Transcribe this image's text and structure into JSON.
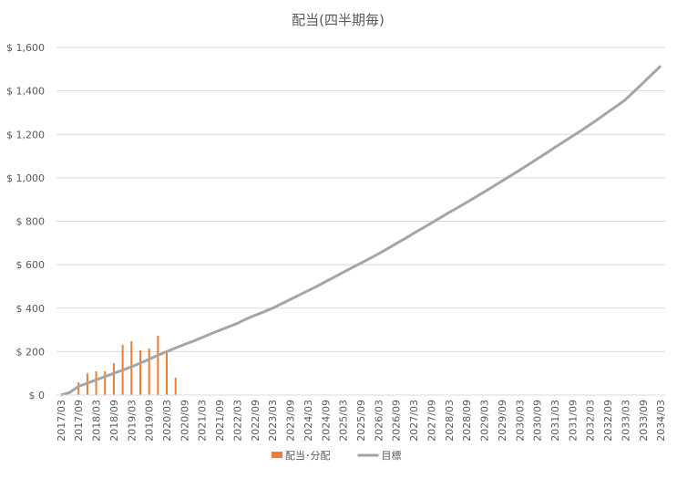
{
  "chart_data": {
    "type": "combo",
    "title": "配当(四半期毎)",
    "categories": [
      "2017/03",
      null,
      "2017/09",
      null,
      "2018/03",
      null,
      "2018/09",
      null,
      "2019/03",
      null,
      "2019/09",
      null,
      "2020/03",
      null,
      "2020/09",
      null,
      "2021/03",
      null,
      "2021/09",
      null,
      "2022/03",
      null,
      "2022/09",
      null,
      "2023/03",
      null,
      "2023/09",
      null,
      "2024/03",
      null,
      "2024/09",
      null,
      "2025/03",
      null,
      "2025/09",
      null,
      "2026/03",
      null,
      "2026/09",
      null,
      "2027/03",
      null,
      "2027/09",
      null,
      "2028/03",
      null,
      "2028/09",
      null,
      "2029/03",
      null,
      "2029/09",
      null,
      "2030/03",
      null,
      "2030/09",
      null,
      "2031/03",
      null,
      "2031/09",
      null,
      "2032/03",
      null,
      "2032/09",
      null,
      "2033/03",
      null,
      "2033/09",
      null,
      "2034/03"
    ],
    "series": [
      {
        "name": "配当･分配",
        "type": "bar",
        "color": "#ed7d31",
        "values": [
          null,
          null,
          59,
          100,
          109,
          109,
          147,
          231,
          248,
          206,
          214,
          273,
          206,
          80,
          null,
          null,
          null,
          null,
          null,
          null,
          null,
          null,
          null,
          null,
          null,
          null,
          null,
          null,
          null,
          null,
          null,
          null,
          null,
          null,
          null,
          null,
          null,
          null,
          null,
          null,
          null,
          null,
          null,
          null,
          null,
          null,
          null,
          null,
          null,
          null,
          null,
          null,
          null,
          null,
          null,
          null,
          null,
          null,
          null,
          null,
          null,
          null,
          null,
          null,
          null,
          null,
          null,
          null,
          null
        ]
      },
      {
        "name": "目標",
        "type": "line",
        "color": "#a5a5a5",
        "values": [
          0,
          12,
          40,
          55,
          70,
          85,
          100,
          115,
          130,
          147,
          165,
          183,
          200,
          217,
          233,
          248,
          265,
          282,
          298,
          314,
          330,
          350,
          367,
          383,
          400,
          420,
          440,
          460,
          480,
          500,
          522,
          543,
          565,
          586,
          607,
          628,
          650,
          673,
          697,
          720,
          745,
          768,
          792,
          816,
          840,
          863,
          887,
          911,
          935,
          960,
          985,
          1010,
          1035,
          1061,
          1087,
          1113,
          1140,
          1166,
          1192,
          1218,
          1245,
          1273,
          1302,
          1330,
          1360,
          1398,
          1437,
          1476,
          1515
        ]
      }
    ],
    "ylim": [
      0,
      1600
    ],
    "yticks": [
      {
        "value": 0,
        "label": "$ 0"
      },
      {
        "value": 200,
        "label": "$ 200"
      },
      {
        "value": 400,
        "label": "$ 400"
      },
      {
        "value": 600,
        "label": "$ 600"
      },
      {
        "value": 800,
        "label": "$ 800"
      },
      {
        "value": 1000,
        "label": "$ 1,000"
      },
      {
        "value": 1200,
        "label": "$ 1,200"
      },
      {
        "value": 1400,
        "label": "$ 1,400"
      },
      {
        "value": 1600,
        "label": "$ 1,600"
      }
    ],
    "grid": true,
    "legend": "bottom"
  }
}
